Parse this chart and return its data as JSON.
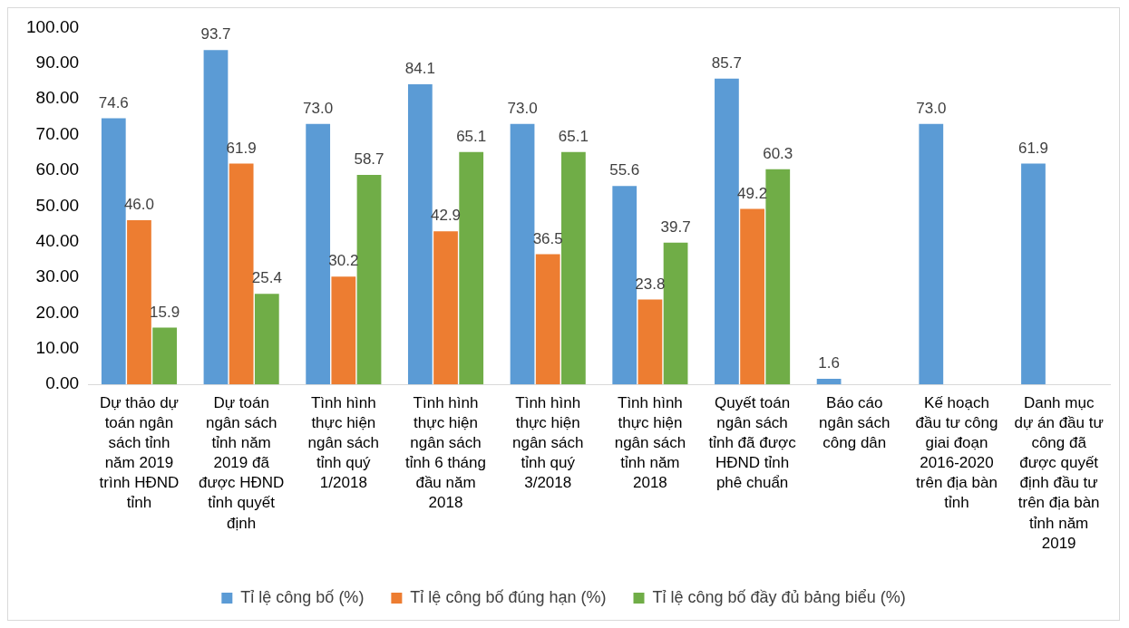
{
  "chart_data": {
    "type": "bar",
    "categories": [
      "Dự thảo dự toán ngân sách tỉnh năm 2019 trình HĐND tỉnh",
      "Dự toán ngân sách tỉnh năm 2019 đã được HĐND tỉnh quyết định",
      "Tình hình thực hiện ngân sách tỉnh quý 1/2018",
      "Tình hình thực hiện ngân sách tỉnh 6 tháng đầu năm 2018",
      "Tình hình thực hiện ngân sách tỉnh quý 3/2018",
      "Tình hình thực hiện ngân sách tỉnh năm 2018",
      "Quyết toán ngân sách tỉnh đã được HĐND tỉnh phê chuẩn",
      "Báo cáo ngân sách công dân",
      "Kế hoạch đầu tư công giai đoạn 2016-2020 trên địa bàn tỉnh",
      "Danh mục dự án đầu tư công đã được quyết định đầu tư trên địa bàn tỉnh năm 2019"
    ],
    "series": [
      {
        "name": "Tỉ lệ công bố (%)",
        "color": "#5b9bd5",
        "values": [
          74.6,
          93.7,
          73.0,
          84.1,
          73.0,
          55.6,
          85.7,
          1.6,
          73.0,
          61.9
        ],
        "value_labels": [
          "74.6",
          "93.7",
          "73.0",
          "84.1",
          "73.0",
          "55.6",
          "85.7",
          "1.6",
          "73.0",
          "61.9"
        ]
      },
      {
        "name": "Tỉ lệ công bố đúng hạn (%)",
        "color": "#ed7d31",
        "values": [
          46.0,
          61.9,
          30.2,
          42.9,
          36.5,
          23.8,
          49.2,
          null,
          null,
          null
        ],
        "value_labels": [
          "46.0",
          "61.9",
          "30.2",
          "42.9",
          "36.5",
          "23.8",
          "49.2",
          null,
          null,
          null
        ]
      },
      {
        "name": "Tỉ lệ công bố đầy đủ bảng biểu (%)",
        "color": "#70ad47",
        "values": [
          15.9,
          25.4,
          58.7,
          65.1,
          65.1,
          39.7,
          60.3,
          null,
          null,
          null
        ],
        "value_labels": [
          "15.9",
          "25.4",
          "58.7",
          "65.1",
          "65.1",
          "39.7",
          "60.3",
          null,
          null,
          null
        ]
      }
    ],
    "ylim": [
      0,
      100
    ],
    "yticks": [
      {
        "value": 0,
        "label": "0.00"
      },
      {
        "value": 10,
        "label": "10.00"
      },
      {
        "value": 20,
        "label": "20.00"
      },
      {
        "value": 30,
        "label": "30.00"
      },
      {
        "value": 40,
        "label": "40.00"
      },
      {
        "value": 50,
        "label": "50.00"
      },
      {
        "value": 60,
        "label": "60.00"
      },
      {
        "value": 70,
        "label": "70.00"
      },
      {
        "value": 80,
        "label": "80.00"
      },
      {
        "value": 90,
        "label": "90.00"
      },
      {
        "value": 100,
        "label": "100.00"
      }
    ],
    "grid": false,
    "legend": "bottom"
  }
}
